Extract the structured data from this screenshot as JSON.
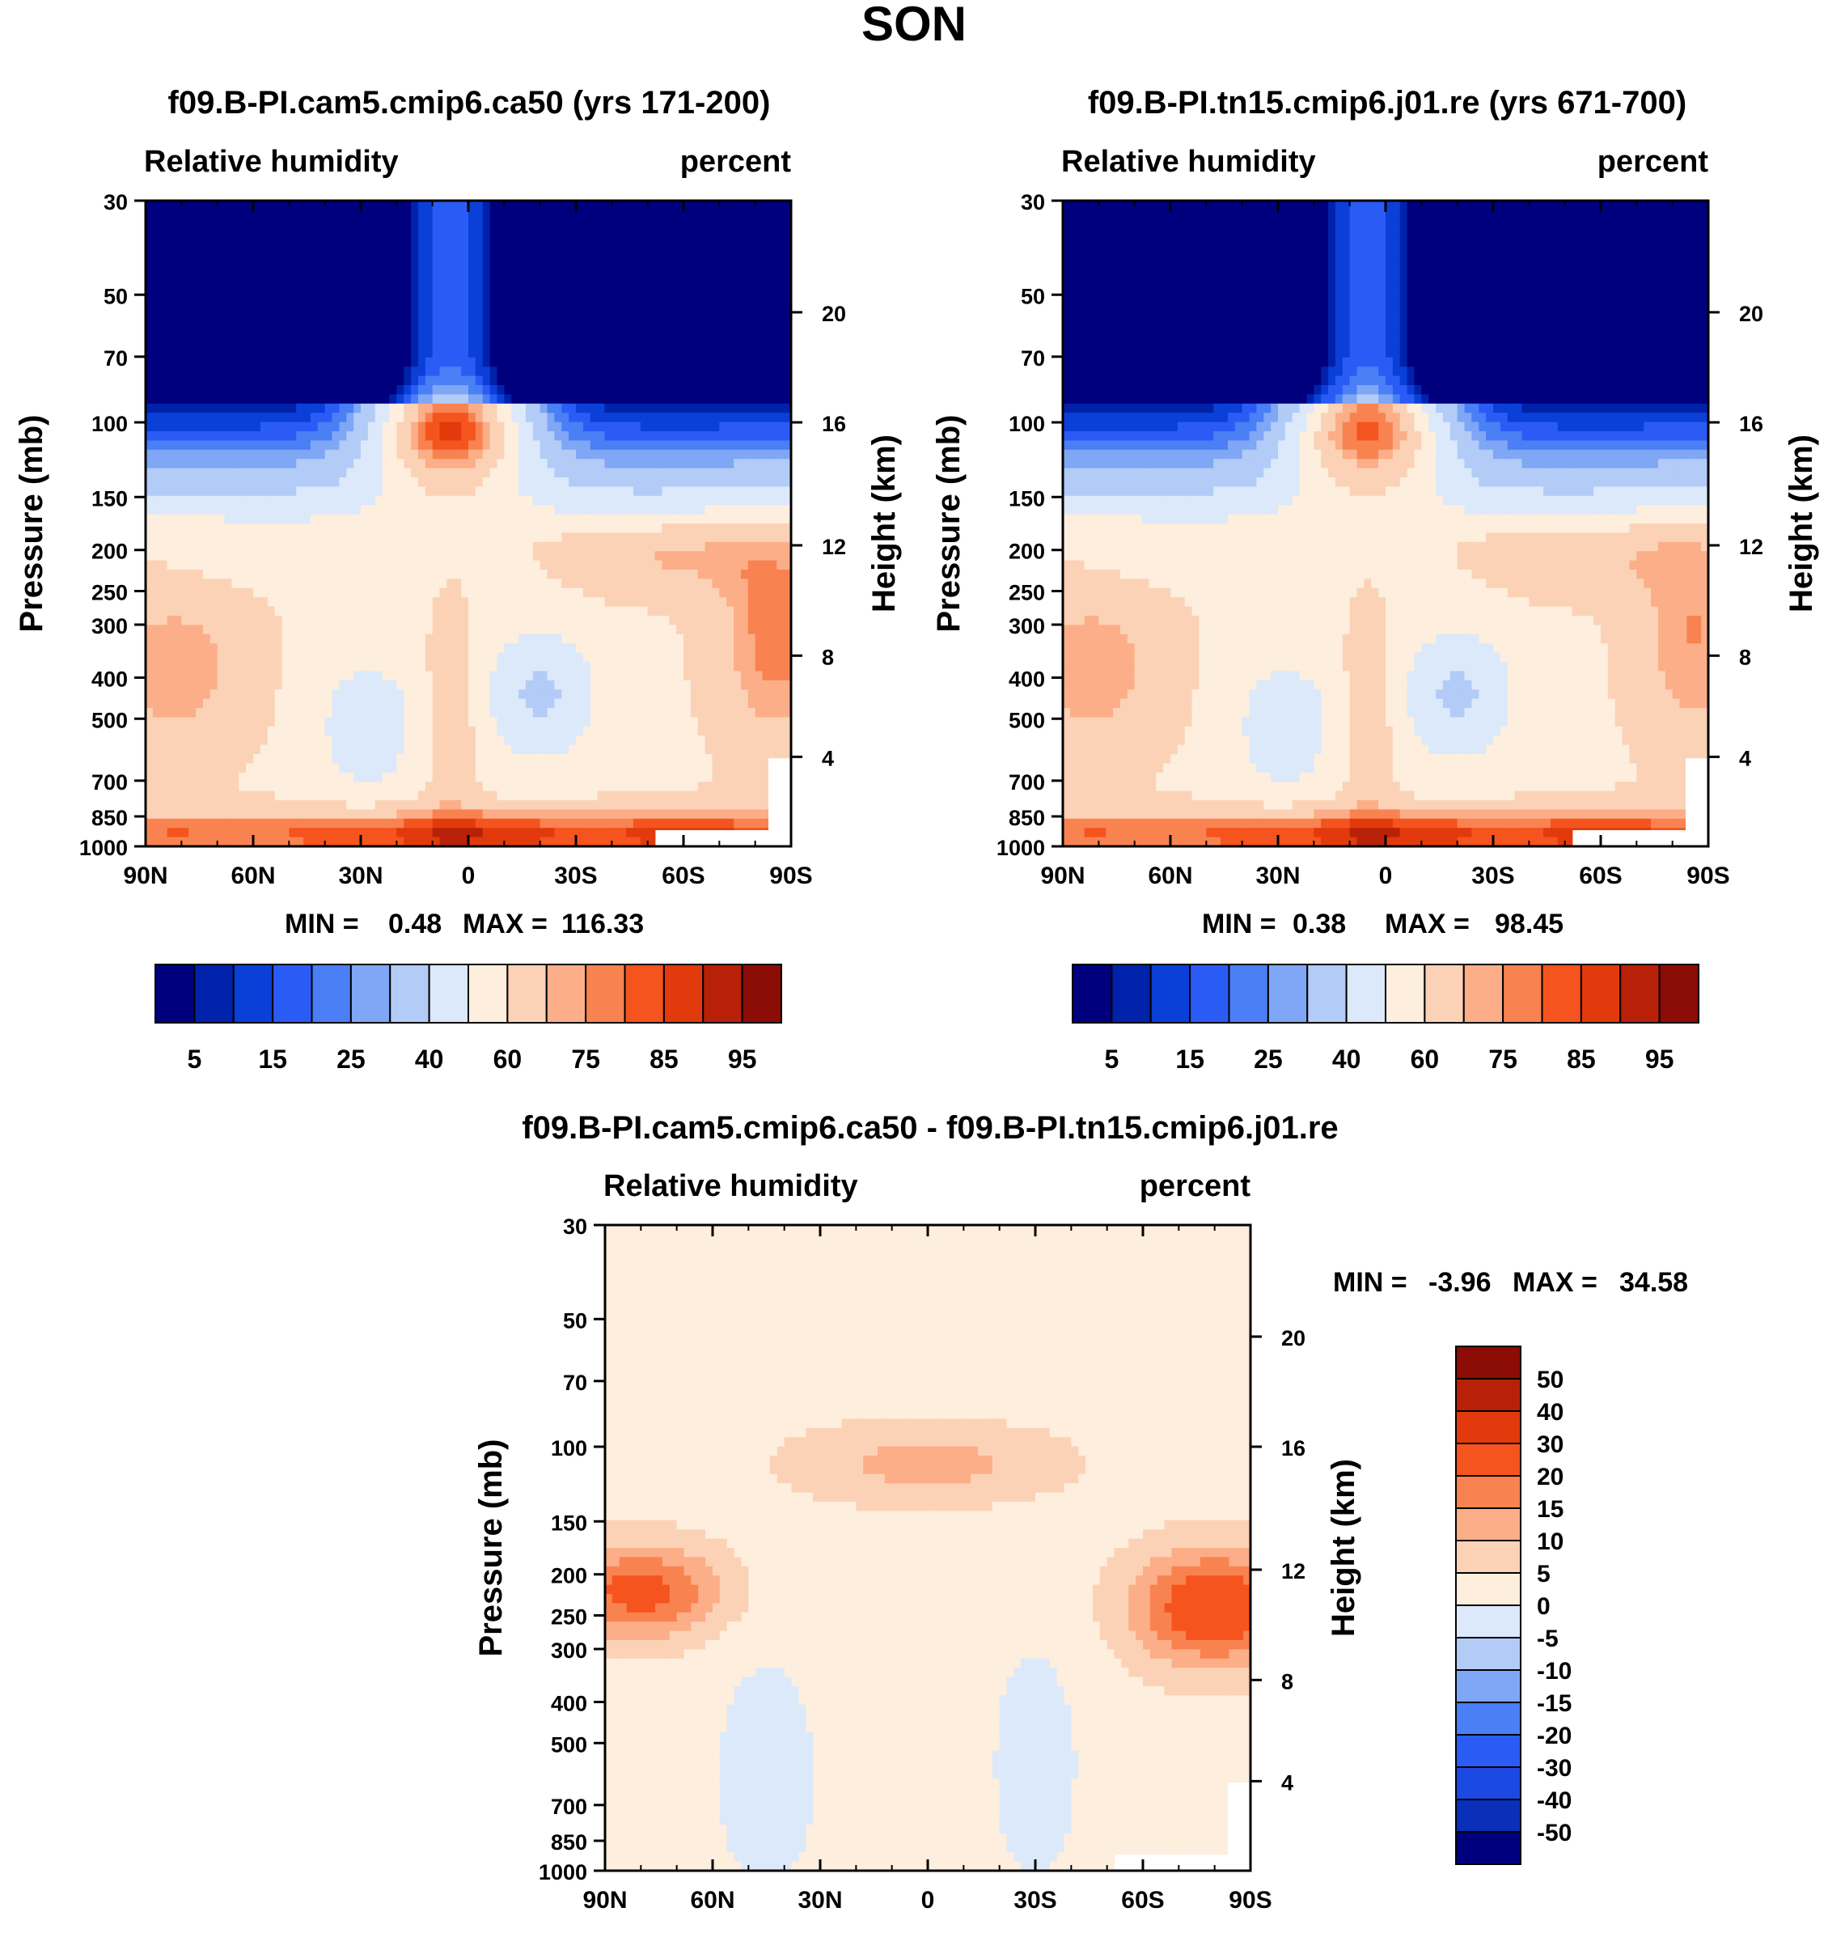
{
  "figure": {
    "title": "SON"
  },
  "colors": {
    "abs_palette": [
      "#00007f",
      "#0022aa",
      "#0a3fd8",
      "#2a5cf5",
      "#4a7ff5",
      "#7fa7f5",
      "#b3cbf7",
      "#dbe9fa",
      "#fdeedd",
      "#fcd2b6",
      "#fbae88",
      "#f98350",
      "#f5541e",
      "#e23a0c",
      "#b82108",
      "#8c0c06"
    ],
    "diff_palette": [
      "#00007f",
      "#0a2fb8",
      "#1c49e2",
      "#2a5cf5",
      "#4a7ff5",
      "#7fa7f5",
      "#b3cbf7",
      "#dbe9fa",
      "#fdeedd",
      "#fcd2b6",
      "#fbae88",
      "#f98350",
      "#f5541e",
      "#e23a0c",
      "#b82108",
      "#8c0c06"
    ]
  },
  "chart_data": [
    {
      "type": "heatmap",
      "id": "panel-left",
      "title": "f09.B-PI.cam5.cmip6.ca50 (yrs 171-200)",
      "left_label": "Relative humidity",
      "right_label": "percent",
      "ylabel": "Pressure (mb)",
      "y2label": "Height (km)",
      "x_ticks": [
        "90N",
        "60N",
        "30N",
        "0",
        "30S",
        "60S",
        "90S"
      ],
      "x_range": [
        90,
        -90
      ],
      "y_ticks": [
        "30",
        "50",
        "70",
        "100",
        "150",
        "200",
        "250",
        "300",
        "400",
        "500",
        "700",
        "850",
        "1000"
      ],
      "y_range": [
        30,
        1000
      ],
      "y2_ticks": [
        "20",
        "16",
        "12",
        "8",
        "4"
      ],
      "stats": {
        "min_label": "MIN =",
        "min": "0.48",
        "max_label": "MAX =",
        "max": "116.33"
      },
      "colorbar_levels": [
        5,
        10,
        15,
        20,
        25,
        30,
        40,
        50,
        60,
        70,
        75,
        80,
        85,
        90,
        95
      ],
      "colorbar_labels": [
        "5",
        "15",
        "25",
        "40",
        "60",
        "75",
        "85",
        "95"
      ],
      "wet_factor": 1.0
    },
    {
      "type": "heatmap",
      "id": "panel-right",
      "title": "f09.B-PI.tn15.cmip6.j01.re (yrs 671-700)",
      "left_label": "Relative humidity",
      "right_label": "percent",
      "ylabel": "Pressure (mb)",
      "y2label": "Height (km)",
      "x_ticks": [
        "90N",
        "60N",
        "30N",
        "0",
        "30S",
        "60S",
        "90S"
      ],
      "x_range": [
        90,
        -90
      ],
      "y_ticks": [
        "30",
        "50",
        "70",
        "100",
        "150",
        "200",
        "250",
        "300",
        "400",
        "500",
        "700",
        "850",
        "1000"
      ],
      "y_range": [
        30,
        1000
      ],
      "y2_ticks": [
        "20",
        "16",
        "12",
        "8",
        "4"
      ],
      "stats": {
        "min_label": "MIN =",
        "min": "0.38",
        "max_label": "MAX =",
        "max": "98.45"
      },
      "colorbar_levels": [
        5,
        10,
        15,
        20,
        25,
        30,
        40,
        50,
        60,
        70,
        75,
        80,
        85,
        90,
        95
      ],
      "colorbar_labels": [
        "5",
        "15",
        "25",
        "40",
        "60",
        "75",
        "85",
        "95"
      ],
      "wet_factor": 0.86
    },
    {
      "type": "heatmap",
      "id": "panel-diff",
      "title": "f09.B-PI.cam5.cmip6.ca50 - f09.B-PI.tn15.cmip6.j01.re",
      "left_label": "Relative humidity",
      "right_label": "percent",
      "ylabel": "Pressure (mb)",
      "y2label": "Height (km)",
      "x_ticks": [
        "90N",
        "60N",
        "30N",
        "0",
        "30S",
        "60S",
        "90S"
      ],
      "x_range": [
        90,
        -90
      ],
      "y_ticks": [
        "30",
        "50",
        "70",
        "100",
        "150",
        "200",
        "250",
        "300",
        "400",
        "500",
        "700",
        "850",
        "1000"
      ],
      "y_range": [
        30,
        1000
      ],
      "y2_ticks": [
        "20",
        "16",
        "12",
        "8",
        "4"
      ],
      "stats": {
        "min_label": "MIN =",
        "min": "-3.96",
        "max_label": "MAX =",
        "max": "34.58"
      },
      "colorbar_levels": [
        -50,
        -40,
        -30,
        -20,
        -15,
        -10,
        -5,
        0,
        5,
        10,
        15,
        20,
        30,
        40,
        50
      ],
      "colorbar_labels": [
        "50",
        "40",
        "30",
        "20",
        "15",
        "10",
        "5",
        "0",
        "-5",
        "-10",
        "-15",
        "-20",
        "-30",
        "-40",
        "-50"
      ]
    }
  ]
}
